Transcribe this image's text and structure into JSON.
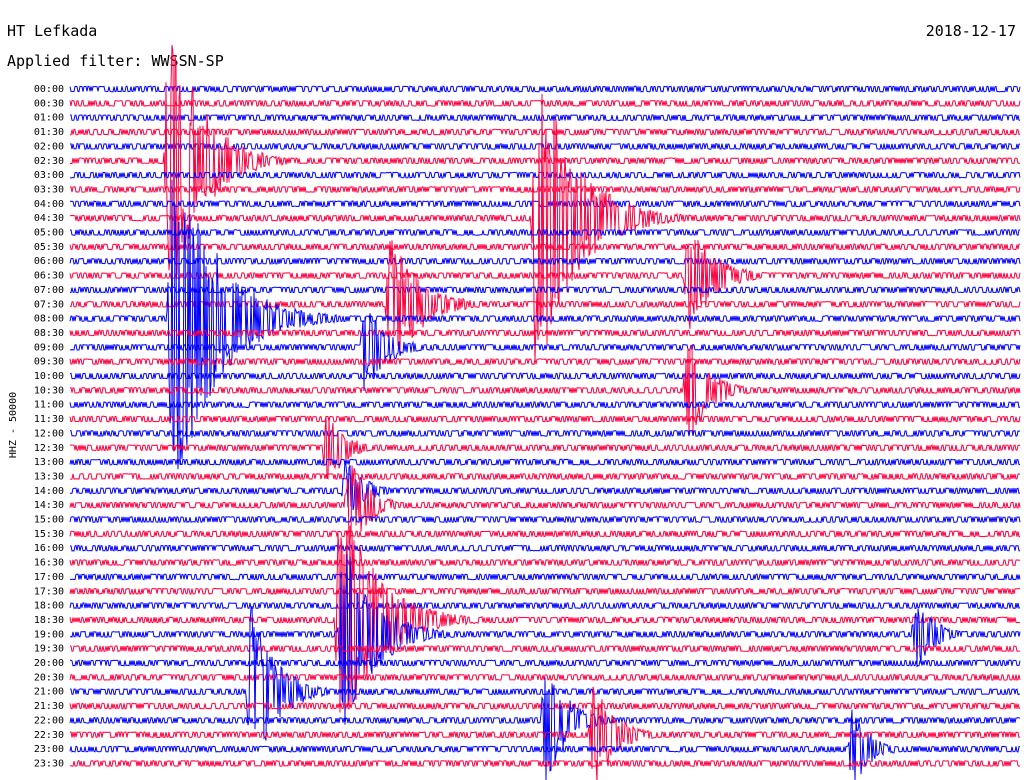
{
  "header": {
    "station": "HT Lefkada",
    "filter": "Applied filter: WWSSN-SP",
    "date": "2018-12-17"
  },
  "chart_data": {
    "type": "line",
    "title": "HT Lefkada",
    "ylabel": "HHZ - 50000",
    "colors": {
      "even": "#0000ff",
      "odd": "#ff0040"
    },
    "rows": [
      "00:00",
      "00:30",
      "01:00",
      "01:30",
      "02:00",
      "02:30",
      "03:00",
      "03:30",
      "04:00",
      "04:30",
      "05:00",
      "05:30",
      "06:00",
      "06:30",
      "07:00",
      "07:30",
      "08:00",
      "08:30",
      "09:00",
      "09:30",
      "10:00",
      "10:30",
      "11:00",
      "11:30",
      "12:00",
      "12:30",
      "13:00",
      "13:30",
      "14:00",
      "14:30",
      "15:00",
      "15:30",
      "16:00",
      "16:30",
      "17:00",
      "17:30",
      "18:00",
      "18:30",
      "19:00",
      "19:30",
      "20:00",
      "20:30",
      "21:00",
      "21:30",
      "22:00",
      "22:30",
      "23:00",
      "23:30"
    ],
    "x_range_minutes": [
      0,
      30
    ],
    "events": [
      {
        "row": 5,
        "minute": 3.1,
        "amp": 190,
        "dur": 1.8
      },
      {
        "row": 9,
        "minute": 14.7,
        "amp": 200,
        "dur": 2.2
      },
      {
        "row": 13,
        "minute": 19.5,
        "amp": 70,
        "dur": 1.5
      },
      {
        "row": 15,
        "minute": 10.1,
        "amp": 90,
        "dur": 1.6
      },
      {
        "row": 16,
        "minute": 3.2,
        "amp": 230,
        "dur": 2.4
      },
      {
        "row": 18,
        "minute": 9.3,
        "amp": 60,
        "dur": 1.2
      },
      {
        "row": 21,
        "minute": 19.5,
        "amp": 70,
        "dur": 1.2
      },
      {
        "row": 25,
        "minute": 8.1,
        "amp": 50,
        "dur": 1.0
      },
      {
        "row": 28,
        "minute": 8.7,
        "amp": 45,
        "dur": 1.0
      },
      {
        "row": 29,
        "minute": 8.8,
        "amp": 60,
        "dur": 1.1
      },
      {
        "row": 37,
        "minute": 8.5,
        "amp": 150,
        "dur": 2.2
      },
      {
        "row": 38,
        "minute": 8.6,
        "amp": 120,
        "dur": 1.8
      },
      {
        "row": 38,
        "minute": 26.7,
        "amp": 50,
        "dur": 1.0
      },
      {
        "row": 42,
        "minute": 5.7,
        "amp": 110,
        "dur": 1.4
      },
      {
        "row": 44,
        "minute": 15.0,
        "amp": 80,
        "dur": 1.2
      },
      {
        "row": 45,
        "minute": 16.5,
        "amp": 70,
        "dur": 1.2
      },
      {
        "row": 46,
        "minute": 24.7,
        "amp": 50,
        "dur": 1.0
      }
    ]
  }
}
